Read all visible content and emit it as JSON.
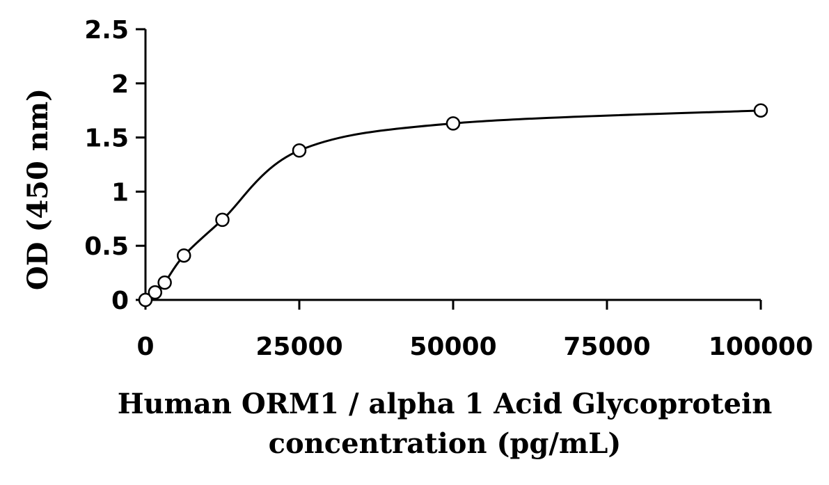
{
  "chart_data": {
    "type": "scatter",
    "title": "",
    "xlabel_lines": [
      "Human ORM1 / alpha 1 Acid Glycoprotein",
      "concentration (pg/mL)"
    ],
    "ylabel": "OD (450 nm)",
    "xlim": [
      0,
      100000
    ],
    "ylim": [
      0,
      2.5
    ],
    "x_ticks": [
      0,
      25000,
      50000,
      75000,
      100000
    ],
    "x_tick_labels": [
      "0",
      "25000",
      "50000",
      "75000",
      "100000"
    ],
    "y_ticks": [
      0,
      0.5,
      1,
      1.5,
      2,
      2.5
    ],
    "y_tick_labels": [
      "0",
      "0.5",
      "1",
      "1.5",
      "2",
      "2.5"
    ],
    "grid": false,
    "legend": "none",
    "line_style": "smooth",
    "marker": "open-circle",
    "colors": {
      "line": "#000000",
      "marker_fill": "#ffffff",
      "marker_stroke": "#000000"
    },
    "series": [
      {
        "x": [
          0,
          1562.5,
          3125,
          6250,
          12500,
          25000,
          50000,
          100000
        ],
        "y": [
          0.0,
          0.07,
          0.16,
          0.41,
          0.74,
          1.38,
          1.63,
          1.75
        ]
      }
    ]
  }
}
